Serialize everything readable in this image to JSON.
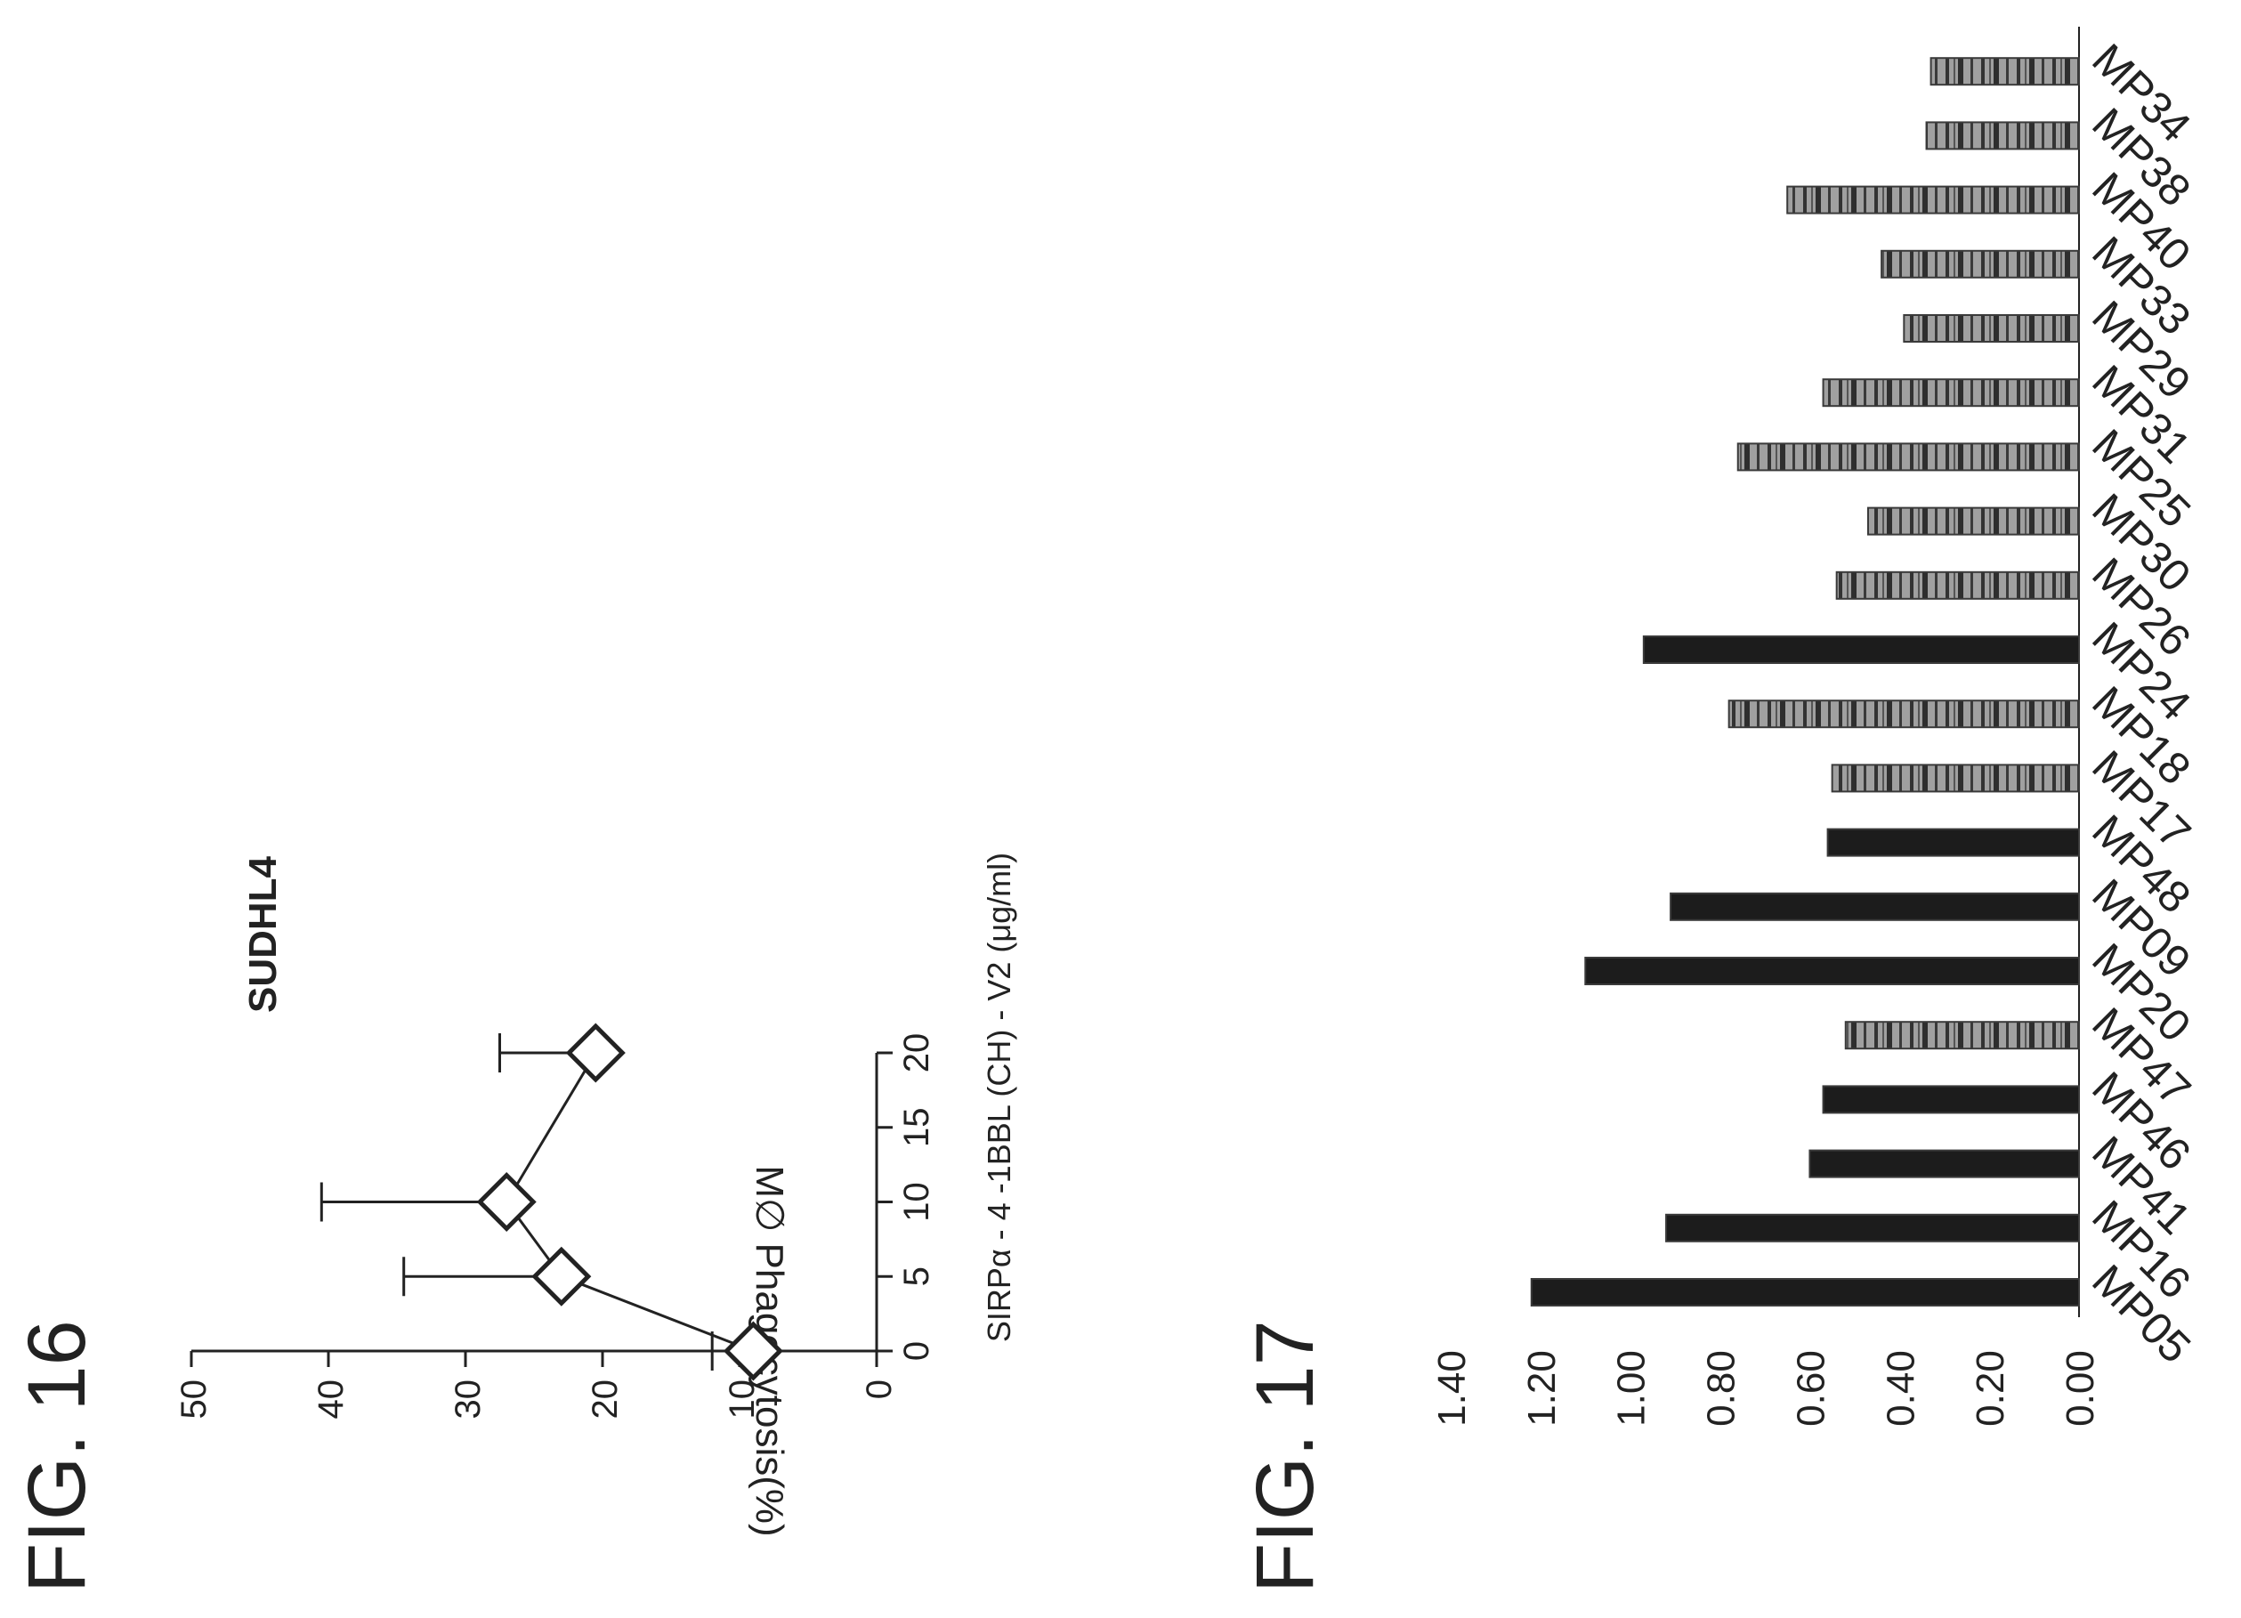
{
  "figures": [
    {
      "label": "FIG. 16"
    },
    {
      "label": "FIG. 17"
    }
  ],
  "colors": {
    "ink": "#222222",
    "solid_bar": "#1c1c1c",
    "hatched_dark": "#3a3a3a",
    "hatched_light": "#9a9a9a"
  },
  "chart_data": [
    {
      "type": "line",
      "title": "SUDHL4",
      "xlabel": "SIRPα - 4 -1BBL (CH) - V2 (μg/ml)",
      "ylabel": "M∅ Phagocytosis(%)",
      "xlim": [
        0,
        20
      ],
      "ylim": [
        0,
        50
      ],
      "x_ticks": [
        "0",
        "5",
        "10",
        "15",
        "20"
      ],
      "y_ticks": [
        "0",
        "10",
        "20",
        "30",
        "40",
        "50"
      ],
      "marker": "diamond",
      "grid": false,
      "series": [
        {
          "x": [
            0,
            5,
            10,
            20
          ],
          "y": [
            9,
            23,
            27,
            20.5
          ],
          "error": [
            3,
            11.5,
            13.5,
            7
          ]
        }
      ]
    },
    {
      "type": "bar",
      "orientation": "rotated-90-clockwise",
      "categories": [
        "MP05",
        "MP16",
        "MP41",
        "MP46",
        "MP47",
        "MP20",
        "MP09",
        "MP48",
        "MP17",
        "MP18",
        "MP24",
        "MP26",
        "MP30",
        "MP25",
        "MP31",
        "MP29",
        "MP33",
        "MP40",
        "MP38",
        "MP34"
      ],
      "values": [
        1.22,
        0.92,
        0.6,
        0.57,
        0.52,
        1.1,
        0.91,
        0.56,
        0.55,
        0.78,
        0.97,
        0.54,
        0.47,
        0.76,
        0.57,
        0.39,
        0.44,
        0.65,
        0.34,
        0.33
      ],
      "styles": [
        "solid",
        "solid",
        "solid",
        "solid",
        "hatched",
        "solid",
        "solid",
        "solid",
        "hatched",
        "hatched",
        "solid",
        "hatched",
        "hatched",
        "hatched",
        "hatched",
        "hatched",
        "hatched",
        "hatched",
        "hatched",
        "hatched"
      ],
      "ylim": [
        0,
        1.4
      ],
      "y_ticks": [
        "0.00",
        "0.20",
        "0.40",
        "0.60",
        "0.80",
        "1.00",
        "1.20",
        "1.40"
      ],
      "grid": false
    }
  ]
}
